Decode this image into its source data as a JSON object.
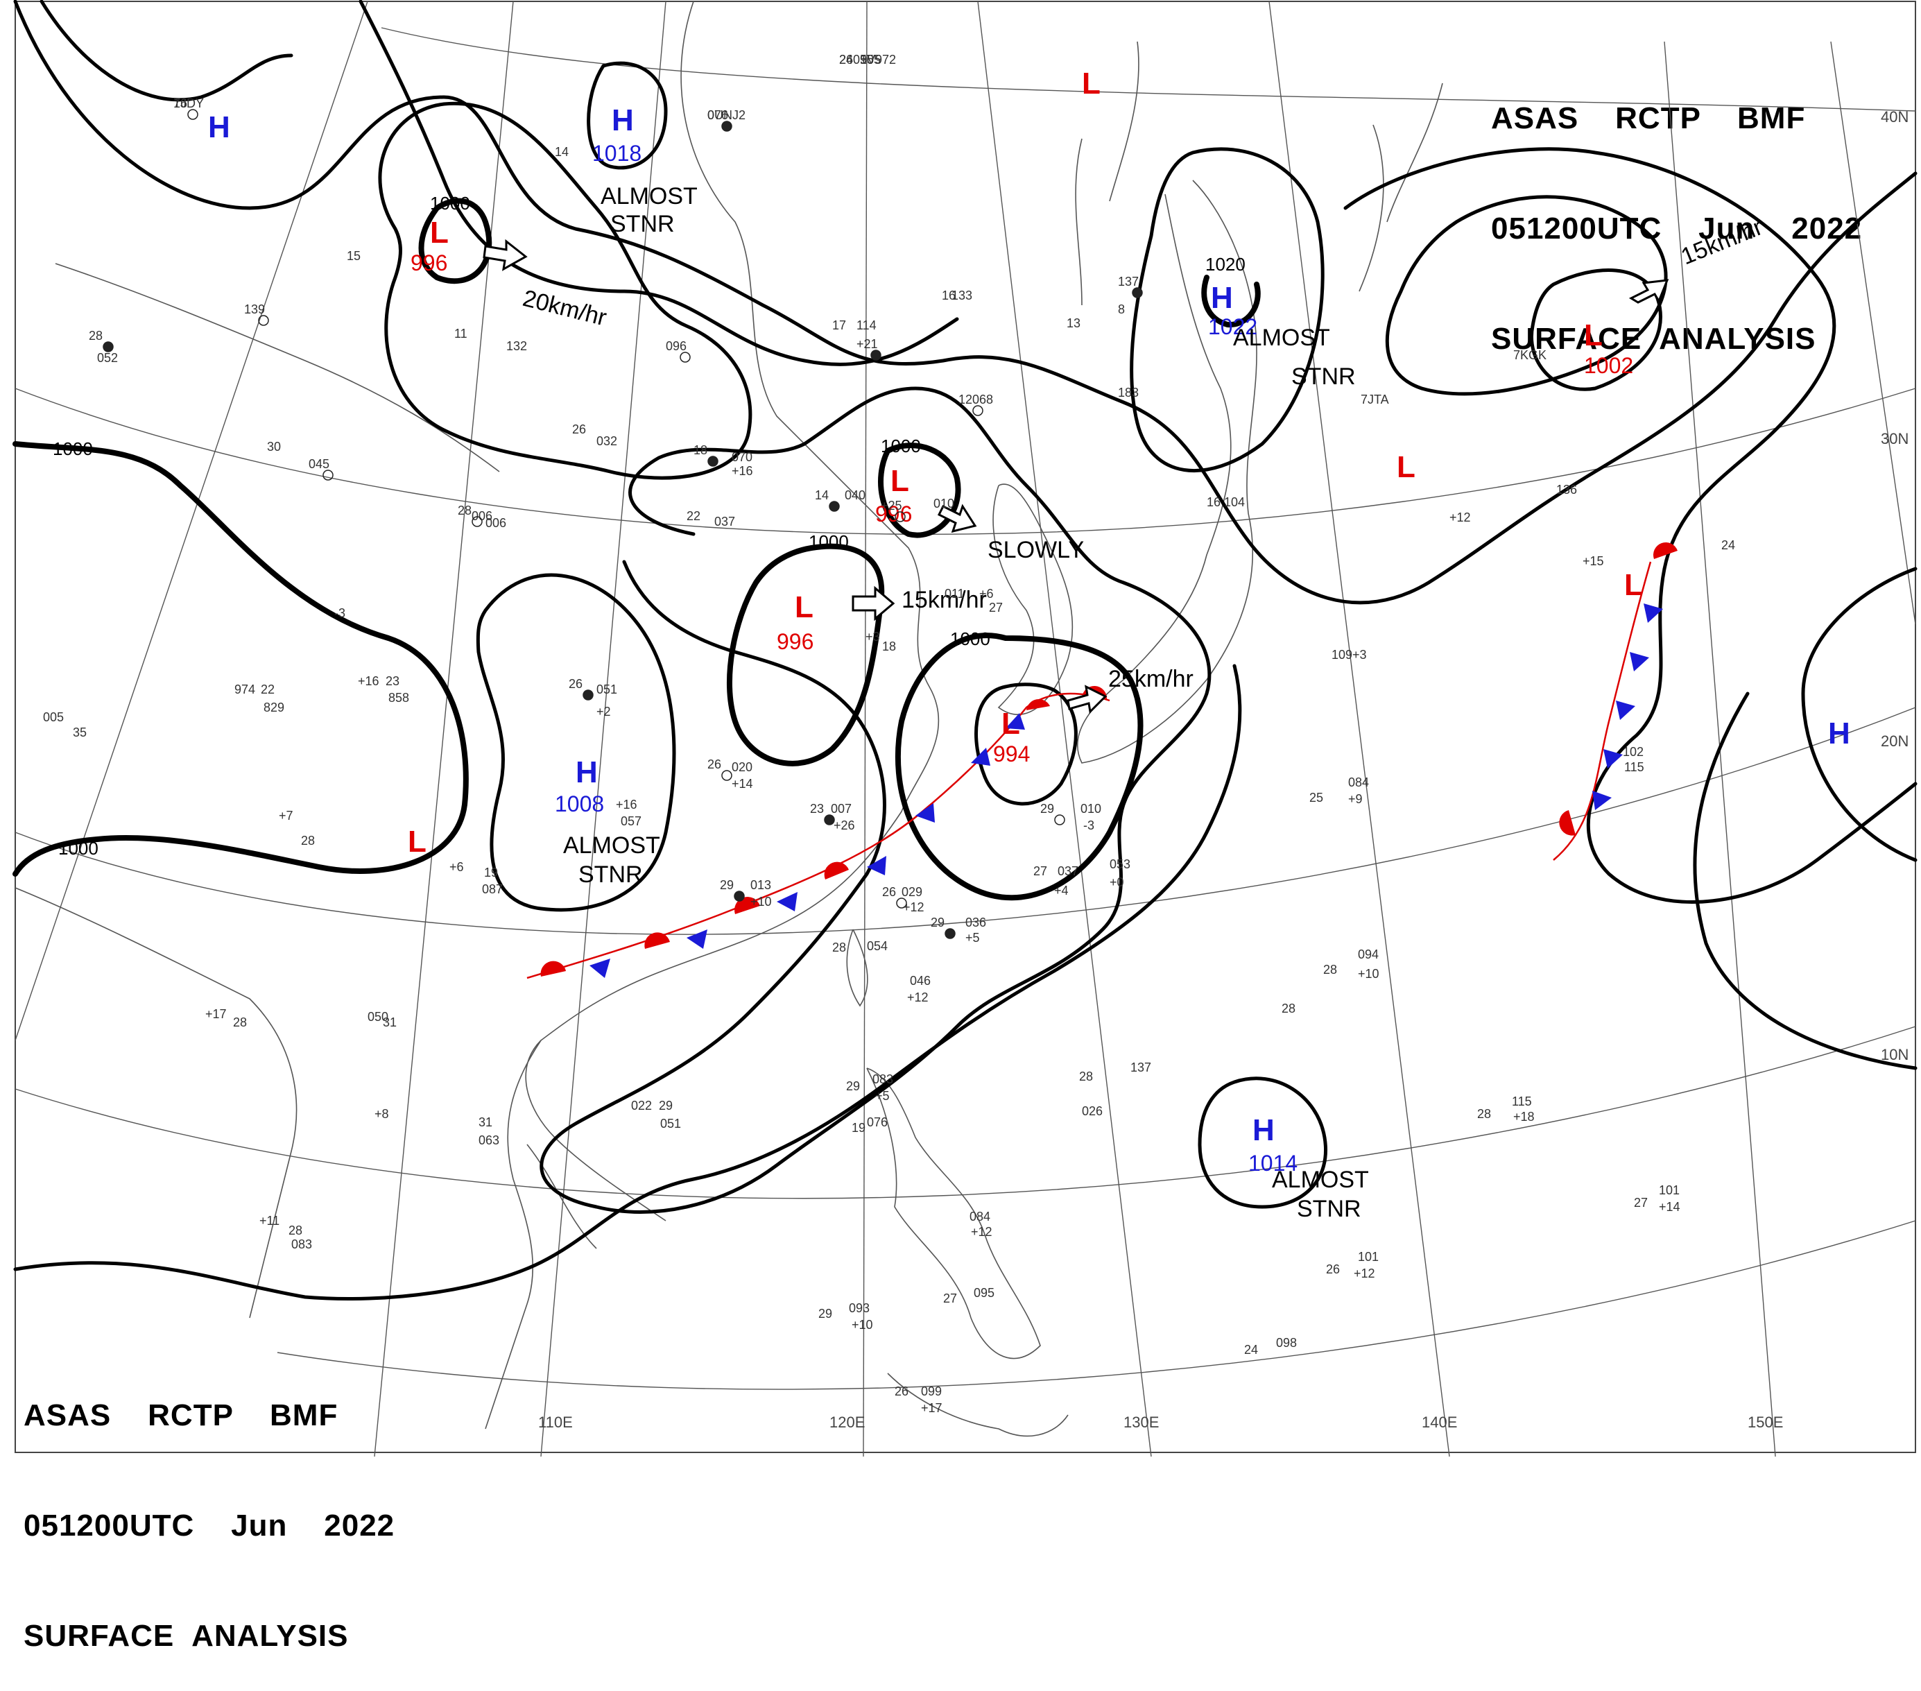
{
  "header_top": {
    "line1": "ASAS    RCTP    BMF",
    "line2": "051200UTC    Jun    2022",
    "line3": "SURFACE  ANALYSIS"
  },
  "header_bottom": {
    "line1": "ASAS    RCTP    BMF",
    "line2": "051200UTC    Jun    2022",
    "line3": "SURFACE  ANALYSIS"
  },
  "colors": {
    "high": "#1a1ad6",
    "low": "#e00000",
    "front_red": "#e00000",
    "front_blue": "#1a1ad6"
  },
  "lon_labels": [
    "110E",
    "120E",
    "130E",
    "140E",
    "150E"
  ],
  "lat_labels": [
    "40N",
    "30N",
    "20N",
    "10N"
  ],
  "isobar_labels": [
    "1000",
    "1000",
    "1000",
    "1000",
    "1000",
    "1000",
    "1020"
  ],
  "pressure_centers": [
    {
      "type": "H",
      "value": ""
    },
    {
      "type": "H",
      "value": "1018"
    },
    {
      "type": "L",
      "value": "996"
    },
    {
      "type": "L",
      "value": ""
    },
    {
      "type": "L",
      "value": "996"
    },
    {
      "type": "L",
      "value": "996"
    },
    {
      "type": "H",
      "value": "1022"
    },
    {
      "type": "L",
      "value": "1002"
    },
    {
      "type": "L",
      "value": ""
    },
    {
      "type": "L",
      "value": ""
    },
    {
      "type": "H",
      "value": "1008"
    },
    {
      "type": "L",
      "value": "994"
    },
    {
      "type": "L",
      "value": ""
    },
    {
      "type": "H",
      "value": ""
    },
    {
      "type": "H",
      "value": "1014"
    }
  ],
  "movement_labels": {
    "m1": "20km/hr",
    "m2": "15km/hr",
    "m3": "15km/hr",
    "m4": "25km/hr",
    "m5": "SLOWLY"
  },
  "stationary_labels": {
    "s1a": "ALMOST",
    "s1b": "STNR",
    "s2a": "ALMOST",
    "s2b": "STNR",
    "s3a": "ALMOST",
    "s3b": "STNR",
    "s4a": "ALMOST",
    "s4b": "STNR"
  },
  "station_obs": [
    "16",
    "24",
    "105",
    "076",
    "14",
    "15",
    "139",
    "11",
    "132",
    "28",
    "052",
    "30",
    "045",
    "26",
    "032",
    "18",
    "070",
    "+16",
    "096",
    "17",
    "114",
    "+21",
    "16",
    "133",
    "12",
    "068",
    "13",
    "137",
    "8",
    "183",
    "28",
    "22",
    "037",
    "14",
    "040",
    "010",
    "+25",
    "16",
    "104",
    "26",
    "051",
    "+2",
    "26",
    "020",
    "+14",
    "23",
    "007",
    "+26",
    "29",
    "010",
    "-3",
    "29",
    "013",
    "+10",
    "26",
    "029",
    "+12",
    "29",
    "036",
    "+5",
    "27",
    "037",
    "+4",
    "053",
    "+0",
    "28",
    "054",
    "046",
    "+12",
    "28",
    "094",
    "+10",
    "28",
    "137",
    "28",
    "115",
    "+18",
    "29",
    "083",
    "+5",
    "19",
    "076",
    "084",
    "+12",
    "27",
    "095",
    "29",
    "093",
    "+10",
    "26",
    "099",
    "+17",
    "24",
    "098",
    "26",
    "101",
    "+12",
    "27",
    "101",
    "+14",
    "25",
    "084",
    "+9",
    "109",
    "+3",
    "24",
    "136",
    "102",
    "115",
    "+7",
    "28",
    "005",
    "35",
    "974",
    "22",
    "829",
    "+16",
    "23",
    "858",
    "+6",
    "19",
    "087",
    "+16",
    "057",
    "+17",
    "28",
    "050",
    "31",
    "022",
    "29",
    "051",
    "+8",
    "31",
    "063",
    "+11",
    "28",
    "083",
    "+3",
    "18",
    "011",
    "+6",
    "27",
    "006",
    "006",
    "-3",
    "28",
    "026",
    "+12",
    "+15",
    "7KGK",
    "7JTA",
    "7JDY",
    "26055",
    "9V972",
    "0UNJ2"
  ]
}
